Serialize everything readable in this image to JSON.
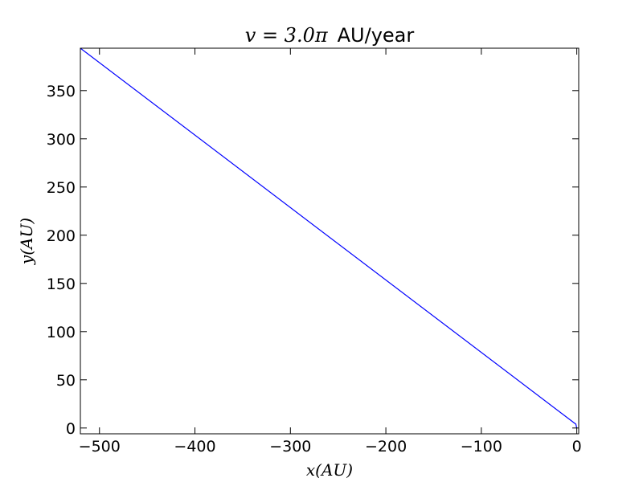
{
  "chart_data": {
    "type": "line",
    "title_math": "v = 3.0π",
    "title_text": "AU/year",
    "xlabel": "x(AU)",
    "ylabel": "y(AU)",
    "xlim": [
      -520,
      2
    ],
    "ylim": [
      -6,
      394
    ],
    "xticks": [
      -500,
      -400,
      -300,
      -200,
      -100,
      0
    ],
    "xtick_labels": [
      "−500",
      "−400",
      "−300",
      "−200",
      "−100",
      "0"
    ],
    "yticks": [
      0,
      50,
      100,
      150,
      200,
      250,
      300,
      350
    ],
    "ytick_labels": [
      "0",
      "50",
      "100",
      "150",
      "200",
      "250",
      "300",
      "350"
    ],
    "grid": false,
    "series": [
      {
        "color": "#0000ff",
        "x": [
          0,
          -1,
          -520
        ],
        "y": [
          0,
          4,
          394
        ]
      }
    ]
  }
}
